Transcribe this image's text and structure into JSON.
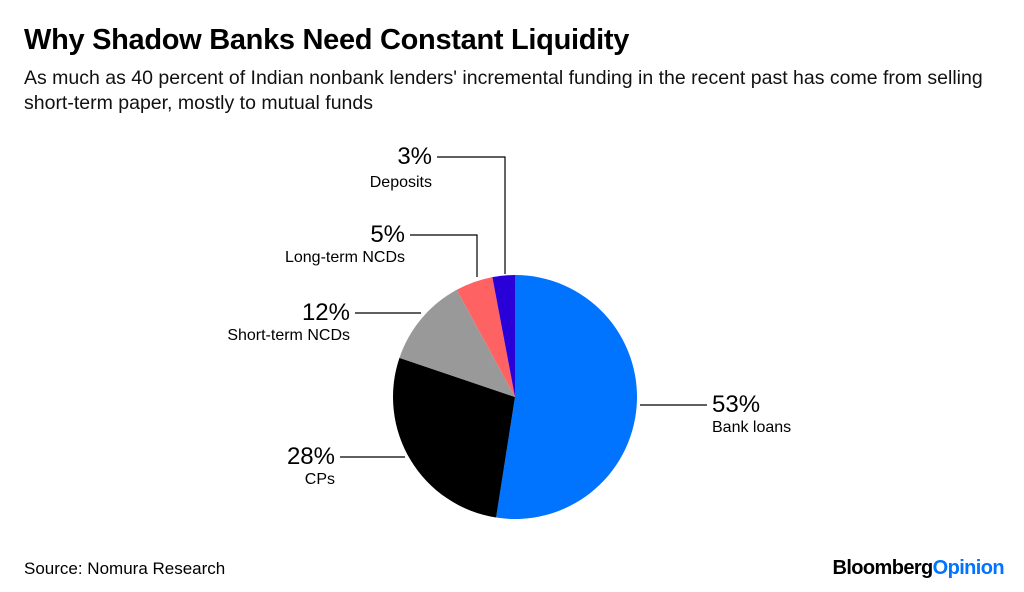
{
  "chart_data": {
    "type": "pie",
    "title": "Why Shadow Banks Need Constant Liquidity",
    "subtitle": "As much as 40 percent of Indian nonbank lenders' incremental funding in the recent past has come from selling short-term paper, mostly to mutual funds",
    "slices": [
      {
        "label": "Bank loans",
        "value": 53,
        "value_label": "53%",
        "color": "#0073ff"
      },
      {
        "label": "CPs",
        "value": 28,
        "value_label": "28%",
        "color": "#000000"
      },
      {
        "label": "Short-term NCDs",
        "value": 12,
        "value_label": "12%",
        "color": "#999999"
      },
      {
        "label": "Long-term NCDs",
        "value": 5,
        "value_label": "5%",
        "color": "#ff6262"
      },
      {
        "label": "Deposits",
        "value": 3,
        "value_label": "3%",
        "color": "#2a00d8"
      }
    ],
    "start_angle": "12 o'clock",
    "direction": "clockwise"
  },
  "footer": {
    "source": "Source: Nomura Research",
    "logo_a": "Bloomberg",
    "logo_b": "Opinion"
  }
}
